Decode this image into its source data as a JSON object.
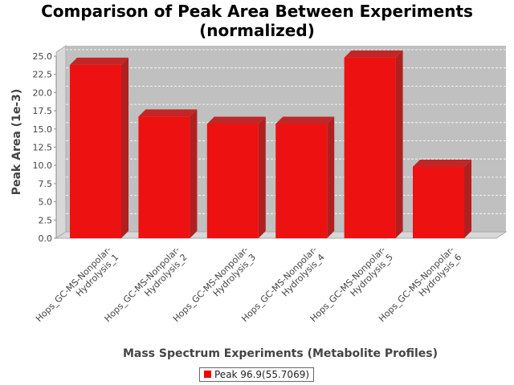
{
  "chart_data": {
    "type": "bar",
    "title": "Comparison of Peak Area Between Experiments",
    "subtitle": "(normalized)",
    "xlabel": "Mass Spectrum Experiments (Metabolite Profiles)",
    "ylabel": "Peak Area (1e-3)",
    "ylim": [
      0,
      25.0
    ],
    "yticks": [
      "0.0",
      "2.5",
      "5.0",
      "7.5",
      "10.0",
      "12.5",
      "15.0",
      "17.5",
      "20.0",
      "22.5",
      "25.0"
    ],
    "categories": [
      [
        "Hops_GC-MS-Nonpolar-",
        "Hydrolysis_1"
      ],
      [
        "Hops_GC-MS-Nonpolar-",
        "Hydrolysis_2"
      ],
      [
        "Hops_GC-MS-Nonpolar-",
        "Hydrolysis_3"
      ],
      [
        "Hops_GC-MS-Nonpolar-",
        "Hydrolysis_4"
      ],
      [
        "Hops_GC-MS-Nonpolar-",
        "Hydrolysis_5"
      ],
      [
        "Hops_GC-MS-Nonpolar-",
        "Hydrolysis_6"
      ]
    ],
    "series": [
      {
        "name": "Peak 96.9(55.7069)",
        "values": [
          23.8,
          16.7,
          15.7,
          15.7,
          24.8,
          9.8
        ],
        "color": "#ee1111"
      }
    ],
    "grid": true,
    "legend": "bottom-center"
  }
}
